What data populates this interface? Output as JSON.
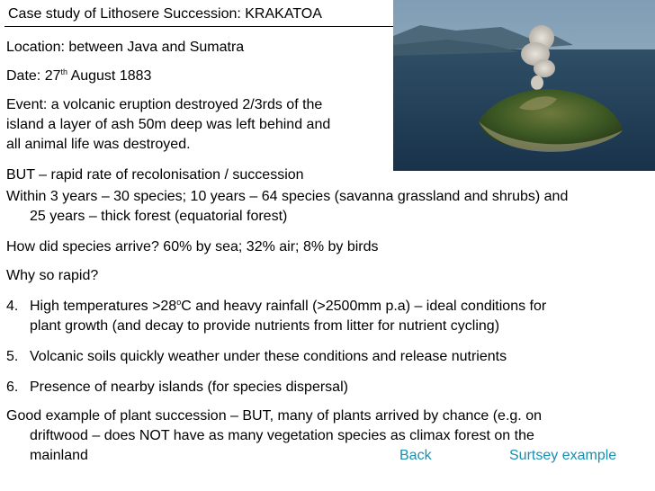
{
  "slide": {
    "title": "Case study of Lithosere Succession: KRAKATOA",
    "location": "Location: between Java and Sumatra",
    "date_prefix": "Date: 27",
    "date_sup": "th",
    "date_suffix": " August 1883",
    "event_1": "Event: a volcanic eruption destroyed 2/3rds of the",
    "event_2": "island a layer of ash 50m deep was left behind and",
    "event_3": "all animal life was destroyed.",
    "but": "BUT – rapid rate of recolonisation / succession",
    "within_1": "Within 3 years – 30 species; 10 years – 64 species (savanna grassland and shrubs) and",
    "within_2": "25 years – thick forest (equatorial forest)",
    "arrive": "How did species arrive? 60% by sea; 32% air; 8% by birds",
    "why": "Why so rapid?",
    "p4_num": "4.",
    "p4_a": "High temperatures >28",
    "p4_sup": "o",
    "p4_b": "C and heavy rainfall (>2500mm p.a) – ideal conditions for",
    "p4_2": "plant growth (and decay to provide nutrients from litter for nutrient cycling)",
    "p5_num": "5.",
    "p5": "Volcanic soils quickly weather under these conditions and release nutrients",
    "p6_num": "6.",
    "p6": "Presence of nearby islands (for species dispersal)",
    "good_1": "Good example of plant succession – BUT, many of plants arrived by chance (e.g. on",
    "good_2": "driftwood – does NOT have as many vegetation species as climax forest on the",
    "good_3": "mainland"
  },
  "nav": {
    "back_label": "Back",
    "surtsey_label": "Surtsey example",
    "link_color": "#1a8fb0"
  }
}
